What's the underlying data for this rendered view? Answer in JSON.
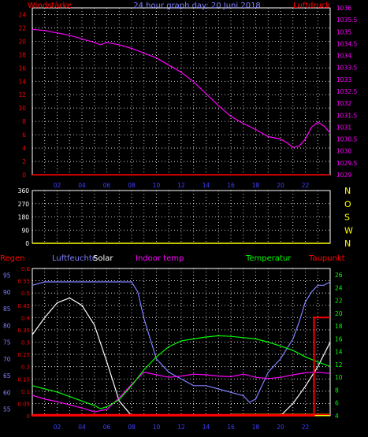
{
  "colors": {
    "background": "#000000",
    "frame": "#ffffff",
    "grid": "#ffffff",
    "zero_line": "#ff0000",
    "baseline_yellow": "#ffff00",
    "wind_label": "#ff0000",
    "pressure": "#ff00ff",
    "direction": "#ffff00",
    "rain": "#ff0000",
    "humidity": "#8080ff",
    "solar": "#ffffff",
    "indoor": "#ff00ff",
    "temperature": "#00ff00",
    "dewpoint": "#ff0000",
    "x_tick": "#4040ff"
  },
  "chart_data": [
    {
      "type": "line",
      "title": "24 hour graph day: 20 Juni 2018",
      "ylabel_left": "Windstärke",
      "ylabel_right": "Luftdruck",
      "y_left_ticks": [
        "0",
        "2",
        "4",
        "6",
        "8",
        "10",
        "12",
        "14",
        "16",
        "18",
        "20",
        "22",
        "24"
      ],
      "y_left_range": [
        0,
        25
      ],
      "y_right_ticks": [
        "1029",
        "1029.5",
        "1030",
        "1030.5",
        "1031",
        "1031.5",
        "1032",
        "1032.5",
        "1033",
        "1033.5",
        "1034",
        "1034.5",
        "1035",
        "1035.5",
        "1036"
      ],
      "y_right_range": [
        1029,
        1036
      ],
      "x_ticks": [
        "02",
        "04",
        "06",
        "08",
        "10",
        "12",
        "14",
        "16",
        "18",
        "20",
        "22"
      ],
      "x_range": [
        0,
        24
      ],
      "grid": true,
      "series": [
        {
          "name": "Luftdruck",
          "axis": "right",
          "x": [
            0,
            1,
            2,
            3,
            4,
            5,
            5.5,
            6,
            7,
            8,
            9,
            10,
            11,
            12,
            13,
            14,
            15,
            16,
            17,
            18,
            19,
            20,
            20.5,
            21,
            21.5,
            22,
            22.5,
            23,
            23.5,
            24
          ],
          "y": [
            1035.1,
            1035.05,
            1034.95,
            1034.85,
            1034.7,
            1034.55,
            1034.45,
            1034.55,
            1034.45,
            1034.3,
            1034.1,
            1033.9,
            1033.6,
            1033.3,
            1032.9,
            1032.4,
            1031.9,
            1031.45,
            1031.15,
            1030.9,
            1030.6,
            1030.5,
            1030.35,
            1030.15,
            1030.2,
            1030.5,
            1031.0,
            1031.2,
            1031.05,
            1030.75
          ]
        },
        {
          "name": "Windstärke",
          "axis": "left",
          "x": [
            0,
            24
          ],
          "y": [
            0,
            0
          ]
        }
      ]
    },
    {
      "type": "scatter",
      "ylabel_left_ticks": [
        "0",
        "90",
        "180",
        "270",
        "360"
      ],
      "y_range": [
        0,
        360
      ],
      "y_right_labels": [
        "N",
        "W",
        "S",
        "O",
        "N"
      ],
      "x_range": [
        0,
        24
      ],
      "grid": true,
      "series": [
        {
          "name": "",
          "x": [],
          "y": []
        }
      ]
    },
    {
      "type": "line",
      "legend": [
        "Regen",
        "Luftfeuchte",
        "Solar",
        "Indoor temp",
        "Temperatur",
        "Taupunkt"
      ],
      "legend_placement": "top",
      "axis_rain_ticks": [
        "0",
        "0.05",
        "0.1",
        "0.15",
        "0.2",
        "0.25",
        "0.3",
        "0.35",
        "0.4",
        "0.45",
        "0.5",
        "0.55",
        "0.6"
      ],
      "axis_rain_range": [
        0,
        0.6
      ],
      "axis_humidity_ticks": [
        "55",
        "60",
        "65",
        "70",
        "75",
        "80",
        "85",
        "90",
        "95"
      ],
      "axis_humidity_range": [
        53,
        97
      ],
      "axis_temp_ticks": [
        "4",
        "6",
        "8",
        "10",
        "12",
        "14",
        "16",
        "18",
        "20",
        "22",
        "24",
        "26"
      ],
      "axis_temp_range": [
        4,
        27
      ],
      "x_ticks": [
        "02",
        "04",
        "06",
        "08",
        "10",
        "12",
        "14",
        "16",
        "18",
        "20",
        "22"
      ],
      "x_range": [
        0,
        24
      ],
      "grid": true,
      "series": [
        {
          "name": "Luftfeuchte",
          "axis": "humidity",
          "x": [
            0,
            1,
            2,
            3,
            4,
            5,
            6,
            7,
            8,
            8.5,
            9,
            9.5,
            10,
            10.5,
            11,
            12,
            13,
            14,
            15,
            16,
            17,
            17.5,
            18,
            18.5,
            19,
            20,
            21,
            21.5,
            22,
            22.5,
            23,
            23.5,
            24
          ],
          "y": [
            92,
            93,
            93,
            93,
            93,
            93,
            93,
            93,
            93,
            90,
            82,
            76,
            70,
            68,
            66,
            64,
            62,
            62,
            61,
            60,
            59,
            57,
            58,
            62,
            66,
            70,
            76,
            81,
            87,
            90,
            92,
            92,
            93
          ]
        },
        {
          "name": "Solar",
          "axis": "rain",
          "x": [
            0,
            1,
            2,
            3,
            4,
            5,
            6,
            7,
            8,
            9,
            10,
            11,
            12,
            13,
            14,
            15,
            16,
            17,
            18,
            19,
            20,
            21,
            22,
            23,
            24
          ],
          "y": [
            0.33,
            0.4,
            0.46,
            0.48,
            0.45,
            0.37,
            0.22,
            0.06,
            0,
            0,
            0,
            0,
            0,
            0,
            0,
            0,
            0,
            0,
            0,
            0,
            0,
            0.05,
            0.12,
            0.2,
            0.3
          ]
        },
        {
          "name": "Indoor temp",
          "axis": "temp",
          "x": [
            0,
            1,
            2,
            3,
            4,
            5,
            6,
            7,
            8,
            9,
            10,
            11,
            12,
            13,
            14,
            15,
            16,
            17,
            18,
            19,
            20,
            21,
            22,
            23,
            24
          ],
          "y": [
            7.2,
            6.6,
            6.2,
            5.7,
            5.2,
            4.6,
            5.0,
            6.8,
            8.9,
            10.8,
            10.4,
            10.0,
            10.2,
            10.5,
            10.4,
            10.2,
            10.1,
            10.5,
            10.0,
            9.8,
            10.0,
            10.4,
            10.7,
            10.8,
            10.6
          ]
        },
        {
          "name": "Temperatur",
          "axis": "temp",
          "x": [
            0,
            1,
            2,
            3,
            4,
            5,
            5.5,
            6,
            7,
            8,
            9,
            10,
            11,
            12,
            13,
            14,
            15,
            16,
            17,
            18,
            19,
            20,
            21,
            22,
            23,
            24
          ],
          "y": [
            8.7,
            8.2,
            7.7,
            7.0,
            6.3,
            5.6,
            5.1,
            5.4,
            6.5,
            8.7,
            11.2,
            13.2,
            14.8,
            15.7,
            16.0,
            16.3,
            16.5,
            16.4,
            16.2,
            16.0,
            15.5,
            14.9,
            14.2,
            13.2,
            12.4,
            11.7
          ]
        },
        {
          "name": "Regen",
          "axis": "rain",
          "x": [
            0,
            22.7,
            22.7,
            24
          ],
          "y": [
            0,
            0,
            0.4,
            0.4
          ]
        },
        {
          "name": "Taupunkt",
          "axis": "temp",
          "x": [
            0,
            24
          ],
          "y": [
            4.2,
            4.2
          ]
        }
      ]
    }
  ]
}
